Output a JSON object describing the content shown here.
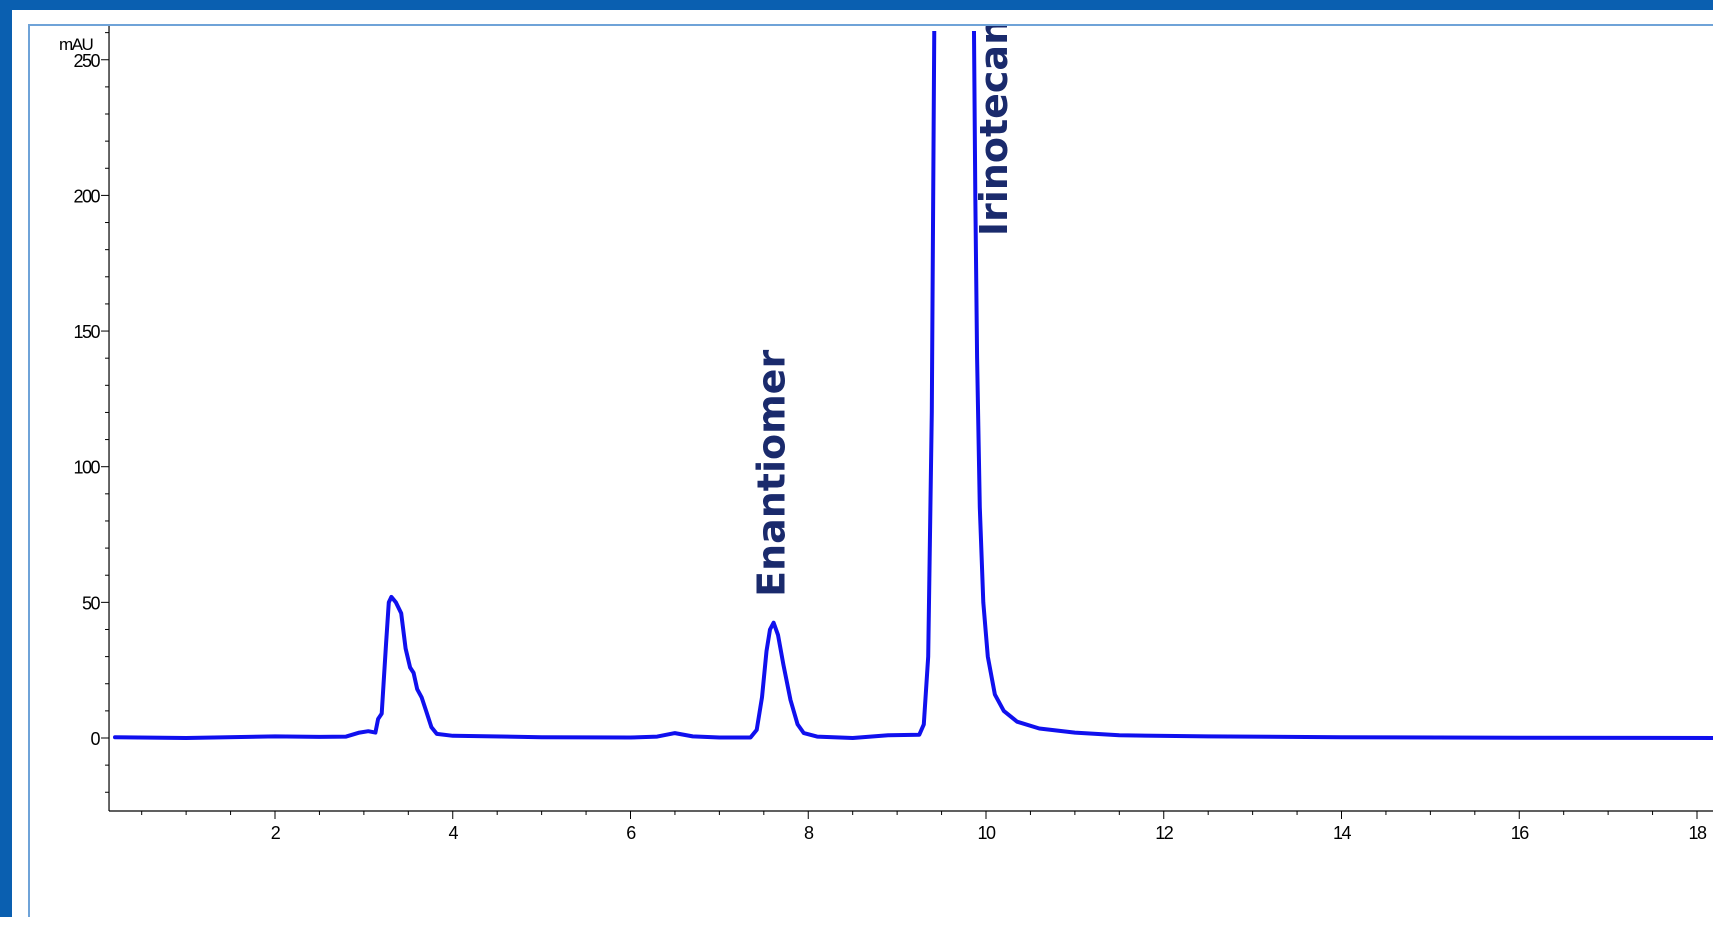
{
  "chart_data": {
    "type": "line",
    "ylabel": "mAU",
    "xlim": [
      0.2,
      18.2
    ],
    "ylim": [
      -22,
      265
    ],
    "x_ticks": [
      2,
      4,
      6,
      8,
      10,
      12,
      14,
      16,
      18
    ],
    "x_tick_labels": [
      "2",
      "4",
      "6",
      "8",
      "10",
      "12",
      "14",
      "16",
      "18"
    ],
    "y_ticks": [
      0,
      50,
      100,
      150,
      200,
      250
    ],
    "y_tick_labels": [
      "0",
      "50",
      "100",
      "150",
      "200",
      "250"
    ],
    "grid": false,
    "series": [
      {
        "color": "#1010ee",
        "points": [
          [
            0.2,
            0.3
          ],
          [
            1.0,
            0.0
          ],
          [
            2.0,
            0.6
          ],
          [
            2.5,
            0.4
          ],
          [
            2.8,
            0.5
          ],
          [
            2.95,
            2.0
          ],
          [
            3.05,
            2.5
          ],
          [
            3.13,
            2.0
          ],
          [
            3.16,
            7.0
          ],
          [
            3.2,
            9.0
          ],
          [
            3.25,
            35.0
          ],
          [
            3.28,
            50.0
          ],
          [
            3.31,
            52.0
          ],
          [
            3.36,
            50.0
          ],
          [
            3.42,
            46.0
          ],
          [
            3.47,
            33.0
          ],
          [
            3.52,
            26.0
          ],
          [
            3.56,
            24.0
          ],
          [
            3.6,
            18.0
          ],
          [
            3.65,
            15.0
          ],
          [
            3.7,
            10.0
          ],
          [
            3.76,
            4.0
          ],
          [
            3.82,
            1.5
          ],
          [
            4.0,
            0.8
          ],
          [
            5.0,
            0.3
          ],
          [
            6.0,
            0.2
          ],
          [
            6.3,
            0.5
          ],
          [
            6.5,
            1.8
          ],
          [
            6.7,
            0.6
          ],
          [
            7.0,
            0.2
          ],
          [
            7.35,
            0.2
          ],
          [
            7.42,
            3.0
          ],
          [
            7.48,
            15.0
          ],
          [
            7.53,
            32.0
          ],
          [
            7.57,
            40.0
          ],
          [
            7.61,
            42.5
          ],
          [
            7.66,
            38.0
          ],
          [
            7.72,
            27.0
          ],
          [
            7.8,
            14.0
          ],
          [
            7.88,
            5.0
          ],
          [
            7.95,
            1.8
          ],
          [
            8.1,
            0.5
          ],
          [
            8.5,
            0.0
          ],
          [
            8.9,
            1.0
          ],
          [
            9.25,
            1.2
          ],
          [
            9.3,
            5.0
          ],
          [
            9.35,
            30.0
          ],
          [
            9.39,
            120.0
          ],
          [
            9.43,
            320.0
          ],
          [
            9.85,
            320.0
          ],
          [
            9.88,
            200.0
          ],
          [
            9.9,
            140.0
          ],
          [
            9.93,
            85.0
          ],
          [
            9.97,
            50.0
          ],
          [
            10.02,
            30.0
          ],
          [
            10.1,
            16.0
          ],
          [
            10.2,
            10.0
          ],
          [
            10.35,
            6.0
          ],
          [
            10.6,
            3.5
          ],
          [
            11.0,
            2.0
          ],
          [
            11.5,
            1.0
          ],
          [
            12.5,
            0.6
          ],
          [
            14.0,
            0.3
          ],
          [
            16.0,
            0.1
          ],
          [
            18.2,
            0.0
          ]
        ]
      }
    ],
    "annotations": [
      {
        "text": "Enantiomer",
        "x": 7.6,
        "y": 52
      },
      {
        "text": "Irinotecan",
        "x": 10.1,
        "y": 185
      }
    ]
  }
}
